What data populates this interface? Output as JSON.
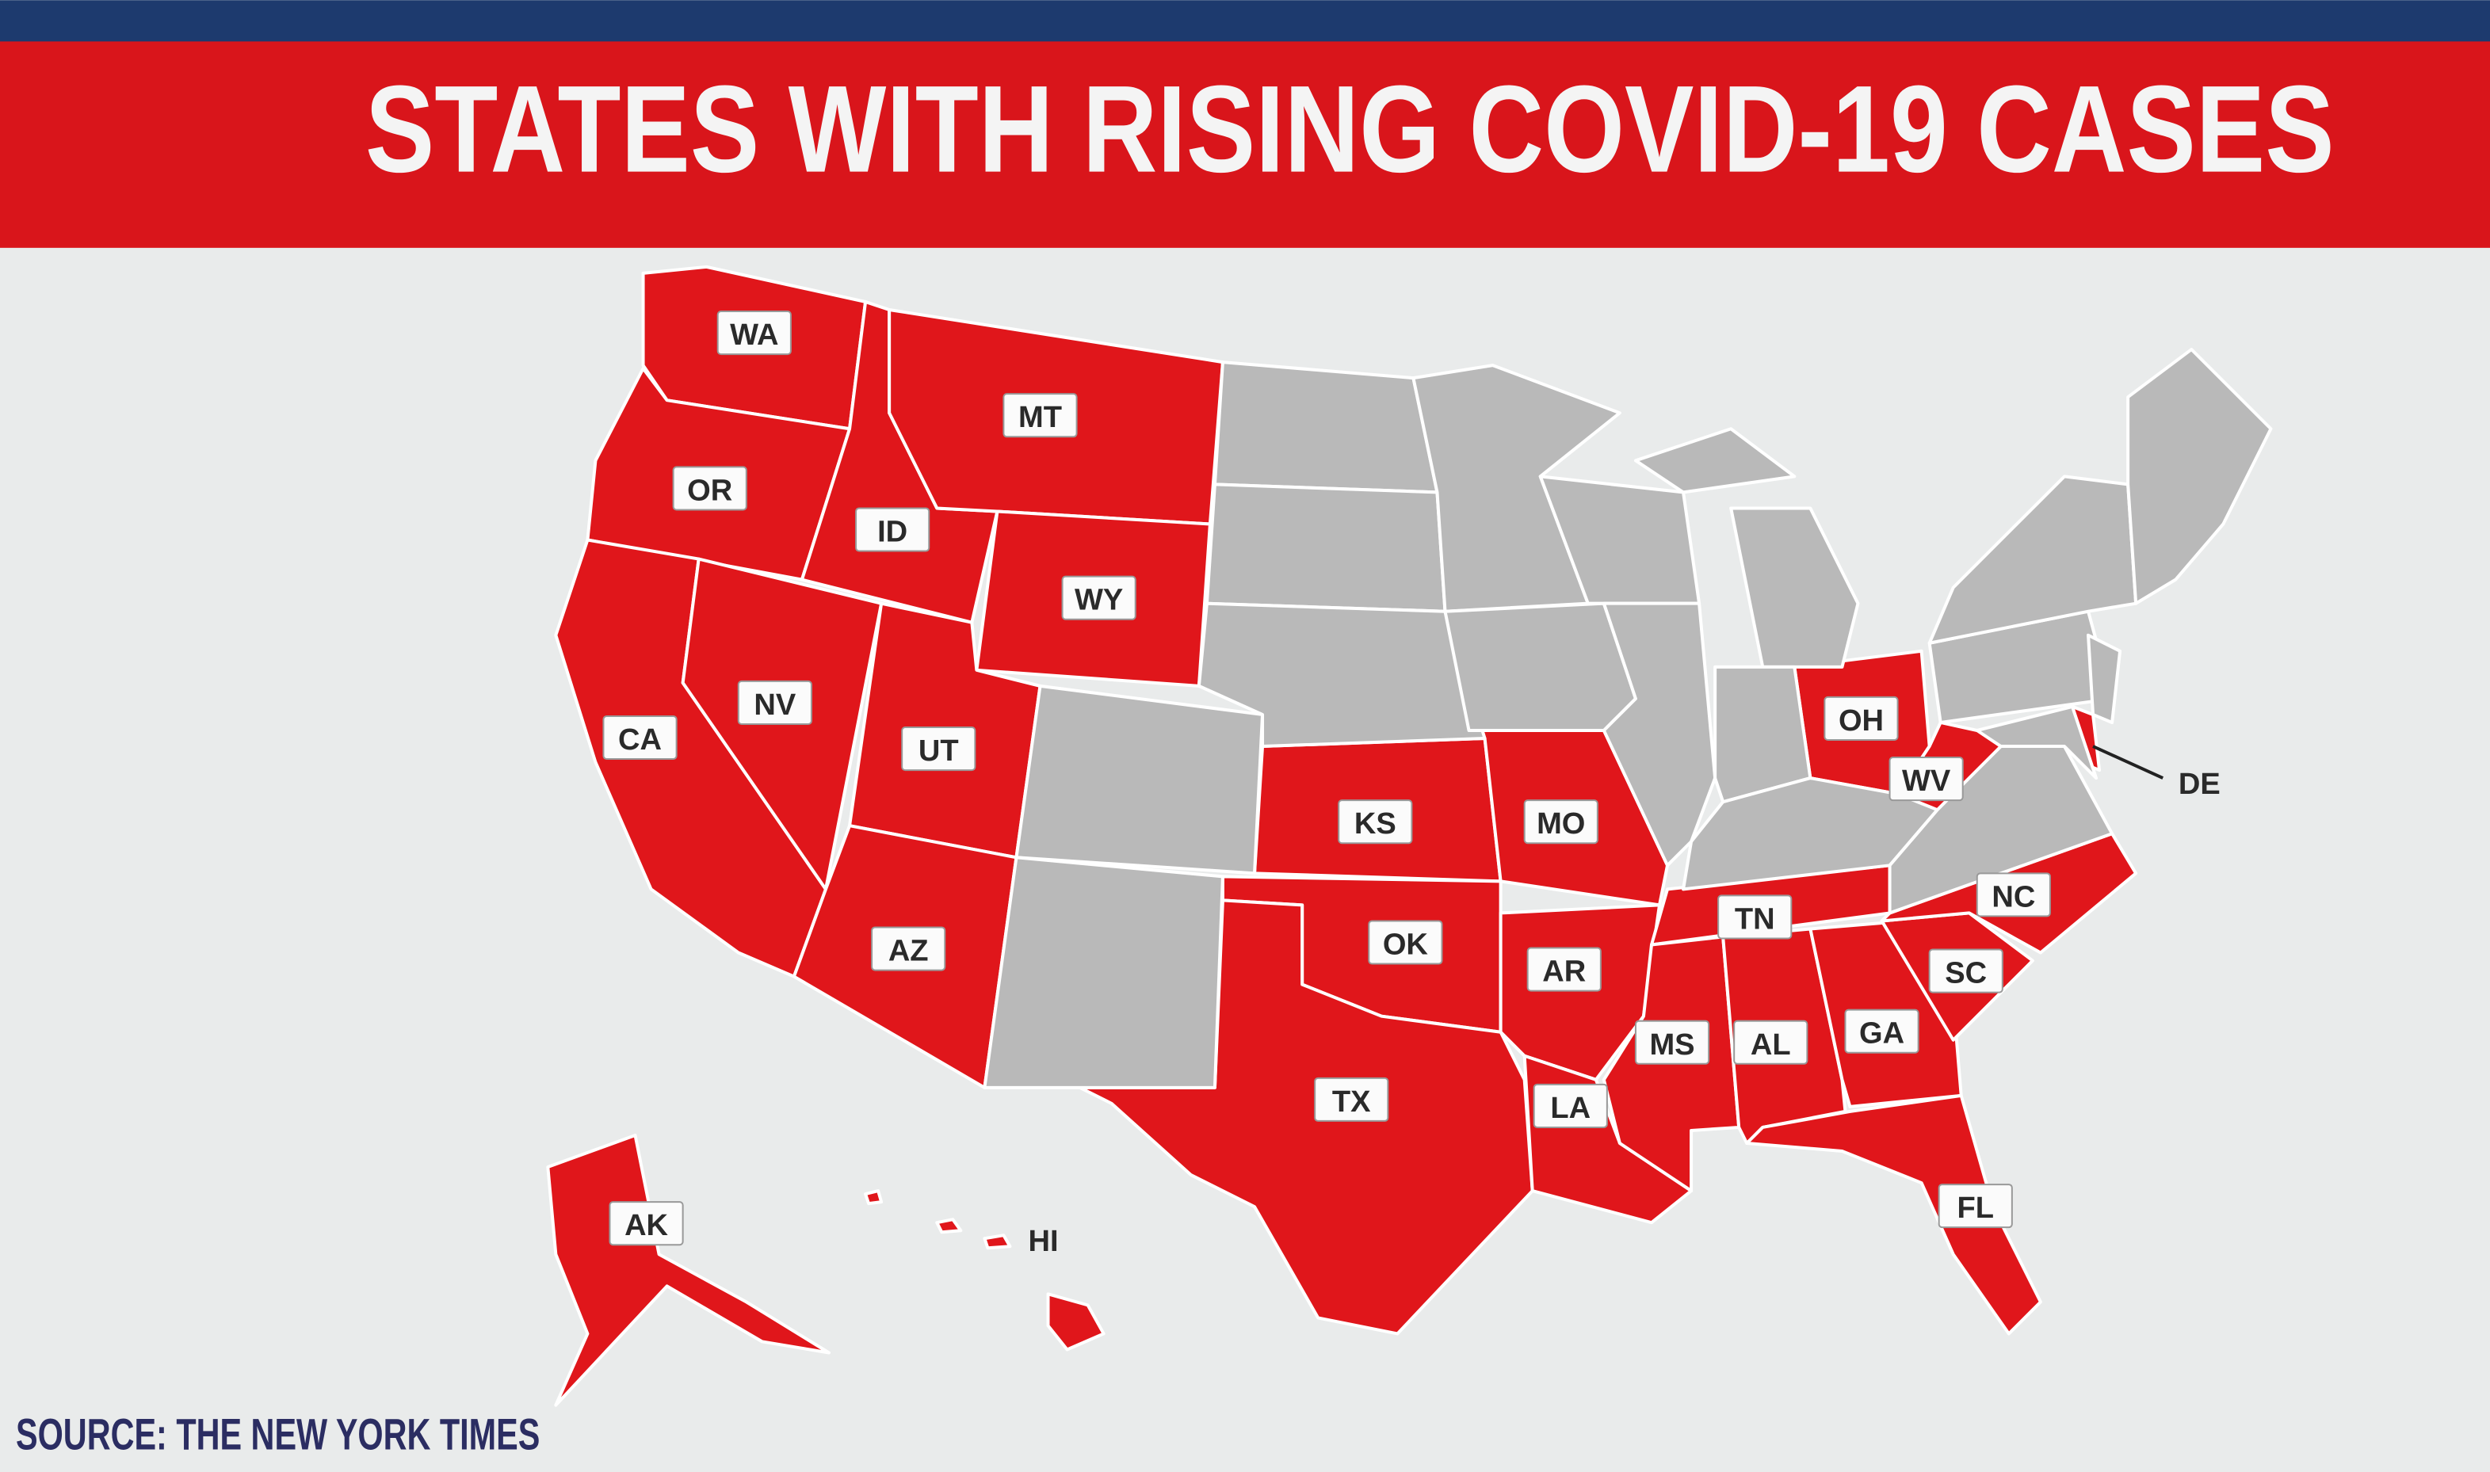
{
  "header": {
    "title": "STATES WITH RISING COVID-19 CASES"
  },
  "map": {
    "highlight_color": "#e0161b",
    "other_color": "#b9b9b9",
    "states": [
      {
        "label": "WA"
      },
      {
        "label": "MT"
      },
      {
        "label": "OR"
      },
      {
        "label": "ID"
      },
      {
        "label": "WY"
      },
      {
        "label": "CA"
      },
      {
        "label": "NV"
      },
      {
        "label": "UT"
      },
      {
        "label": "KS"
      },
      {
        "label": "MO"
      },
      {
        "label": "OK"
      },
      {
        "label": "AZ"
      },
      {
        "label": "AR"
      },
      {
        "label": "TX"
      },
      {
        "label": "LA"
      },
      {
        "label": "MS"
      },
      {
        "label": "AL"
      },
      {
        "label": "TN"
      },
      {
        "label": "GA"
      },
      {
        "label": "SC"
      },
      {
        "label": "NC"
      },
      {
        "label": "FL"
      },
      {
        "label": "OH"
      },
      {
        "label": "WV"
      },
      {
        "label": "DE"
      },
      {
        "label": "AK"
      },
      {
        "label": "HI"
      }
    ]
  },
  "footer": {
    "source": "SOURCE: THE NEW YORK TIMES"
  }
}
